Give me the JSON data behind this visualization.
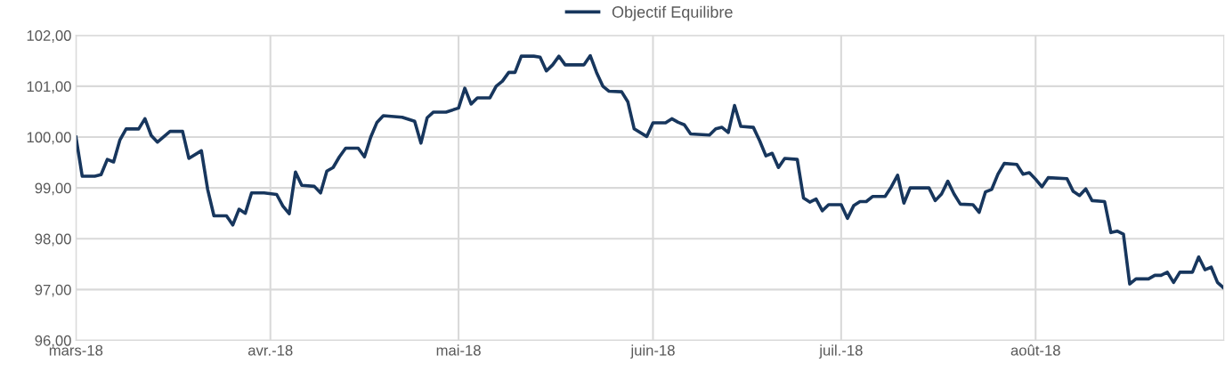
{
  "chart_data": {
    "type": "line",
    "x": [
      "2018-03-01",
      "2018-03-02",
      "2018-03-04",
      "2018-03-05",
      "2018-03-06",
      "2018-03-07",
      "2018-03-08",
      "2018-03-09",
      "2018-03-11",
      "2018-03-12",
      "2018-03-13",
      "2018-03-14",
      "2018-03-16",
      "2018-03-18",
      "2018-03-19",
      "2018-03-21",
      "2018-03-22",
      "2018-03-23",
      "2018-03-25",
      "2018-03-26",
      "2018-03-27",
      "2018-03-28",
      "2018-03-29",
      "2018-03-31",
      "2018-04-02",
      "2018-04-03",
      "2018-04-04",
      "2018-04-05",
      "2018-04-06",
      "2018-04-08",
      "2018-04-09",
      "2018-04-10",
      "2018-04-11",
      "2018-04-12",
      "2018-04-13",
      "2018-04-15",
      "2018-04-16",
      "2018-04-17",
      "2018-04-18",
      "2018-04-19",
      "2018-04-22",
      "2018-04-24",
      "2018-04-25",
      "2018-04-26",
      "2018-04-27",
      "2018-04-29",
      "2018-05-01",
      "2018-05-02",
      "2018-05-03",
      "2018-05-04",
      "2018-05-06",
      "2018-05-07",
      "2018-05-08",
      "2018-05-09",
      "2018-05-10",
      "2018-05-11",
      "2018-05-13",
      "2018-05-14",
      "2018-05-15",
      "2018-05-16",
      "2018-05-17",
      "2018-05-18",
      "2018-05-21",
      "2018-05-22",
      "2018-05-23",
      "2018-05-24",
      "2018-05-25",
      "2018-05-27",
      "2018-05-28",
      "2018-05-29",
      "2018-05-31",
      "2018-06-01",
      "2018-06-03",
      "2018-06-04",
      "2018-06-05",
      "2018-06-06",
      "2018-06-07",
      "2018-06-10",
      "2018-06-11",
      "2018-06-12",
      "2018-06-13",
      "2018-06-14",
      "2018-06-15",
      "2018-06-17",
      "2018-06-18",
      "2018-06-19",
      "2018-06-20",
      "2018-06-21",
      "2018-06-22",
      "2018-06-24",
      "2018-06-25",
      "2018-06-26",
      "2018-06-27",
      "2018-06-28",
      "2018-06-29",
      "2018-07-01",
      "2018-07-02",
      "2018-07-03",
      "2018-07-04",
      "2018-07-05",
      "2018-07-06",
      "2018-07-08",
      "2018-07-09",
      "2018-07-10",
      "2018-07-11",
      "2018-07-12",
      "2018-07-15",
      "2018-07-16",
      "2018-07-17",
      "2018-07-18",
      "2018-07-19",
      "2018-07-20",
      "2018-07-22",
      "2018-07-23",
      "2018-07-24",
      "2018-07-25",
      "2018-07-26",
      "2018-07-27",
      "2018-07-29",
      "2018-07-30",
      "2018-07-31",
      "2018-08-01",
      "2018-08-02",
      "2018-08-03",
      "2018-08-06",
      "2018-08-07",
      "2018-08-08",
      "2018-08-09",
      "2018-08-10",
      "2018-08-12",
      "2018-08-13",
      "2018-08-14",
      "2018-08-15",
      "2018-08-16",
      "2018-08-17",
      "2018-08-19",
      "2018-08-20",
      "2018-08-21",
      "2018-08-22",
      "2018-08-23",
      "2018-08-24",
      "2018-08-26",
      "2018-08-27",
      "2018-08-28",
      "2018-08-29",
      "2018-08-30",
      "2018-08-31"
    ],
    "series": [
      {
        "name": "Objectif Equilibre",
        "color": "#17365d",
        "values": [
          100.0,
          99.23,
          99.23,
          99.26,
          99.56,
          99.51,
          99.94,
          100.16,
          100.16,
          100.36,
          100.03,
          99.9,
          100.11,
          100.11,
          99.58,
          99.73,
          98.97,
          98.45,
          98.45,
          98.27,
          98.58,
          98.5,
          98.9,
          98.9,
          98.87,
          98.64,
          98.49,
          99.31,
          99.05,
          99.03,
          98.9,
          99.33,
          99.4,
          99.61,
          99.78,
          99.78,
          99.61,
          100.0,
          100.29,
          100.42,
          100.39,
          100.31,
          99.88,
          100.38,
          100.49,
          100.49,
          100.57,
          100.96,
          100.65,
          100.77,
          100.77,
          101.0,
          101.1,
          101.27,
          101.27,
          101.59,
          101.59,
          101.57,
          101.3,
          101.42,
          101.59,
          101.42,
          101.42,
          101.6,
          101.27,
          101.0,
          100.9,
          100.89,
          100.69,
          100.16,
          100.01,
          100.28,
          100.28,
          100.36,
          100.29,
          100.24,
          100.06,
          100.04,
          100.16,
          100.19,
          100.09,
          100.62,
          100.21,
          100.19,
          99.93,
          99.63,
          99.68,
          99.4,
          99.58,
          99.56,
          98.8,
          98.72,
          98.78,
          98.55,
          98.67,
          98.67,
          98.4,
          98.65,
          98.73,
          98.73,
          98.83,
          98.83,
          99.02,
          99.25,
          98.7,
          99.0,
          99.0,
          98.75,
          98.88,
          99.13,
          98.88,
          98.68,
          98.67,
          98.52,
          98.92,
          98.97,
          99.27,
          99.48,
          99.46,
          99.27,
          99.3,
          99.17,
          99.02,
          99.2,
          99.18,
          98.93,
          98.85,
          98.98,
          98.75,
          98.73,
          98.12,
          98.15,
          98.09,
          97.11,
          97.21,
          97.21,
          97.28,
          97.28,
          97.34,
          97.14,
          97.34,
          97.34,
          97.64,
          97.39,
          97.44,
          97.14,
          97.03
        ]
      }
    ],
    "xlim": [
      "2018-03-01",
      "2018-08-31"
    ],
    "xticks": [
      {
        "value": "2018-03-01",
        "label": "mars-18"
      },
      {
        "value": "2018-04-01",
        "label": "avr.-18"
      },
      {
        "value": "2018-05-01",
        "label": "mai-18"
      },
      {
        "value": "2018-06-01",
        "label": "juin-18"
      },
      {
        "value": "2018-07-01",
        "label": "juil.-18"
      },
      {
        "value": "2018-08-01",
        "label": "août-18"
      }
    ],
    "ylim": [
      96,
      102
    ],
    "yticks": [
      {
        "value": 96,
        "label": "96,00"
      },
      {
        "value": 97,
        "label": "97,00"
      },
      {
        "value": 98,
        "label": "98,00"
      },
      {
        "value": 99,
        "label": "99,00"
      },
      {
        "value": 100,
        "label": "100,00"
      },
      {
        "value": 101,
        "label": "101,00"
      },
      {
        "value": 102,
        "label": "102,00"
      }
    ],
    "grid": true,
    "legend": "top",
    "marker": "none",
    "line_style": "solid"
  }
}
